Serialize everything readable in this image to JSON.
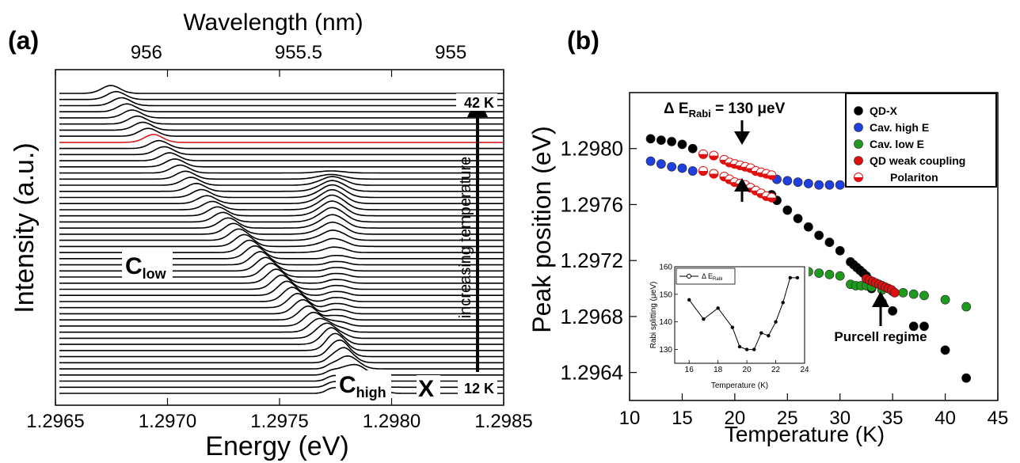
{
  "chart_data": [
    {
      "type": "line",
      "panel_label": "(a)",
      "xlabel": "Energy (eV)",
      "ylabel": "Intensity (a.u.)",
      "x2label": "Wavelength (nm)",
      "xlim": [
        1.2965,
        1.2985
      ],
      "xticks": [
        1.2965,
        1.297,
        1.2975,
        1.298,
        1.2985
      ],
      "xtick_labels": [
        "1.2965",
        "1.2970",
        "1.2975",
        "1.2980",
        "1.2985"
      ],
      "x2ticks": [
        956,
        955.5,
        955
      ],
      "x2tick_labels": [
        "956",
        "955.5",
        "955"
      ],
      "spectra_count": 50,
      "highlighted_spectrum_color": "#d11f1f",
      "temperature_range": [
        "12 K",
        "42 K"
      ],
      "arrow_label": "increasing temperature",
      "annotations": [
        {
          "main": "C",
          "sub": "low"
        },
        {
          "main": "C",
          "sub": "high"
        },
        {
          "main": "X",
          "sub": ""
        }
      ],
      "temp_top_label": "42 K",
      "temp_bottom_label": "12 K"
    },
    {
      "type": "scatter",
      "panel_label": "(b)",
      "xlabel": "Temperature (K)",
      "ylabel": "Peak position (eV)",
      "xlim": [
        10,
        45
      ],
      "ylim": [
        1.2962,
        1.2984
      ],
      "xticks": [
        10,
        15,
        20,
        25,
        30,
        35,
        40,
        45
      ],
      "xtick_labels": [
        "10",
        "15",
        "20",
        "25",
        "30",
        "35",
        "40",
        "45"
      ],
      "yticks": [
        1.2964,
        1.2968,
        1.2972,
        1.2976,
        1.298
      ],
      "ytick_labels": [
        "1.2964",
        "1.2968",
        "1.2972",
        "1.2976",
        "1.2980"
      ],
      "legend_position": "top-right",
      "series": [
        {
          "name": "QD-X",
          "color": "#000000",
          "x": [
            12,
            13,
            14,
            15,
            16,
            23.5,
            24,
            25,
            26,
            27,
            28,
            29,
            30,
            31,
            31.3,
            31.6,
            31.9,
            32.2,
            32.5,
            33,
            34,
            35,
            37,
            38,
            40,
            42
          ],
          "y": [
            1.29807,
            1.29806,
            1.29805,
            1.29803,
            1.298,
            1.29767,
            1.29763,
            1.29756,
            1.2975,
            1.29744,
            1.29738,
            1.29733,
            1.29727,
            1.29719,
            1.29717,
            1.29715,
            1.29713,
            1.29711,
            1.29709,
            1.297,
            1.2969,
            1.29684,
            1.29673,
            1.29673,
            1.29656,
            1.29636
          ]
        },
        {
          "name": "Cav. high E",
          "color": "#1f3fe0",
          "x": [
            12,
            13,
            14,
            15,
            16,
            24,
            25,
            26,
            27,
            28,
            29,
            30
          ],
          "y": [
            1.29791,
            1.29789,
            1.29787,
            1.29786,
            1.29784,
            1.29778,
            1.29777,
            1.29776,
            1.29775,
            1.29774,
            1.29774,
            1.29774
          ]
        },
        {
          "name": "Cav. low E",
          "color": "#1f9a1f",
          "x": [
            25,
            26,
            27,
            28,
            29,
            30,
            31,
            31.5,
            32,
            32.5,
            33,
            34,
            35,
            36,
            37,
            38,
            40,
            42
          ],
          "y": [
            1.29712,
            1.29712,
            1.29712,
            1.29711,
            1.2971,
            1.29709,
            1.29703,
            1.29702,
            1.29702,
            1.29702,
            1.29701,
            1.29699,
            1.29698,
            1.29697,
            1.29696,
            1.29695,
            1.29692,
            1.29687
          ]
        },
        {
          "name": "QD weak coupling",
          "color": "#e01010",
          "x": [
            32.5,
            32.8,
            33.1,
            33.4,
            33.7,
            34,
            34.3,
            34.6,
            34.9,
            35.2
          ],
          "y": [
            1.29707,
            1.29706,
            1.29705,
            1.29704,
            1.29703,
            1.29702,
            1.29701,
            1.297,
            1.29699,
            1.29697
          ]
        },
        {
          "name": "Polariton",
          "color": "#e01010",
          "x": [
            17,
            18,
            19,
            19.5,
            20,
            20.5,
            21,
            21.5,
            22,
            22.5,
            23,
            23.5,
            17,
            18,
            19,
            19.5,
            20,
            20.5,
            21,
            21.5,
            22,
            22.5,
            23,
            23.5
          ],
          "y": [
            1.29796,
            1.29795,
            1.29792,
            1.2979,
            1.29789,
            1.29788,
            1.29787,
            1.29786,
            1.29784,
            1.29783,
            1.29782,
            1.29781,
            1.29784,
            1.29782,
            1.2978,
            1.29778,
            1.29776,
            1.29775,
            1.29774,
            1.29772,
            1.2977,
            1.29768,
            1.29766,
            1.29765
          ]
        }
      ],
      "annotations": {
        "rabi_label_prefix": "Δ E",
        "rabi_label_sub": "Rabi",
        "rabi_label_suffix": " = 130 μeV",
        "purcell_label": "Purcell regime"
      },
      "inset": {
        "type": "line",
        "xlabel": "Temperature (K)",
        "ylabel": "Rabi splitting (μeV)",
        "xlim": [
          15,
          24
        ],
        "ylim": [
          125,
          160
        ],
        "xticks": [
          16,
          18,
          20,
          22,
          24
        ],
        "xtick_labels": [
          "16",
          "18",
          "20",
          "22",
          "24"
        ],
        "yticks": [
          130,
          140,
          150,
          160
        ],
        "ytick_labels": [
          "130",
          "140",
          "150",
          "160"
        ],
        "legend_prefix": "Δ E",
        "legend_sub": "Rabi",
        "x": [
          16,
          17,
          18,
          19,
          19.5,
          20,
          20.5,
          21,
          21.5,
          22,
          22.5,
          23,
          23.5
        ],
        "y": [
          148,
          141,
          145,
          138,
          131,
          130,
          130,
          136,
          135,
          140,
          147,
          156,
          156
        ]
      }
    }
  ]
}
